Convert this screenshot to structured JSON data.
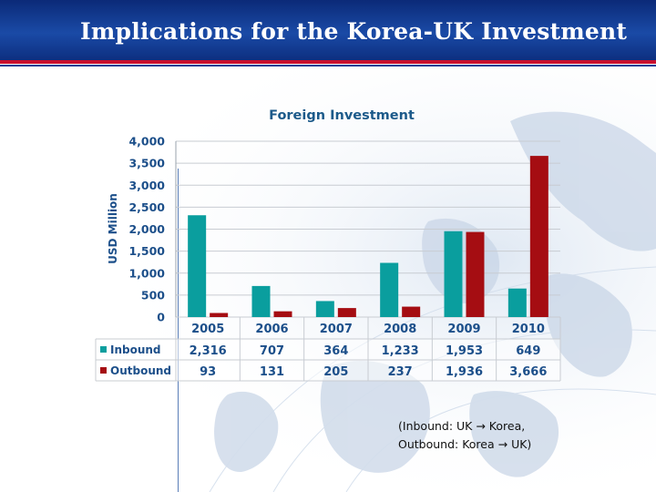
{
  "slide": {
    "title": "Implications for the Korea-UK Investment",
    "note_line1": "(Inbound: UK → Korea,",
    "note_line2": "Outbound: Korea → UK)"
  },
  "colors": {
    "header": "#1a4aa6",
    "accent_rule": "#c8102e",
    "inbound": "#0a9e9e",
    "outbound": "#a50d12",
    "chart_text": "#1c4f8a",
    "title_text": "#1c5a8a"
  },
  "chart_data": {
    "type": "bar",
    "title": "Foreign Investment",
    "ylabel": "USD Million",
    "xlabel": "",
    "categories": [
      "2005",
      "2006",
      "2007",
      "2008",
      "2009",
      "2010"
    ],
    "series": [
      {
        "name": "Inbound",
        "values": [
          2316,
          707,
          364,
          1233,
          1953,
          649
        ],
        "labels": [
          "2,316",
          "707",
          "364",
          "1,233",
          "1,953",
          "649"
        ]
      },
      {
        "name": "Outbound",
        "values": [
          93,
          131,
          205,
          237,
          1936,
          3666
        ],
        "labels": [
          "93",
          "131",
          "205",
          "237",
          "1,936",
          "3,666"
        ]
      }
    ],
    "ylim": [
      0,
      4000
    ],
    "yticks": [
      "0",
      "500",
      "1,000",
      "1,500",
      "2,000",
      "2,500",
      "3,000",
      "3,500",
      "4,000"
    ],
    "grid": true,
    "legend": "data-table-below"
  }
}
